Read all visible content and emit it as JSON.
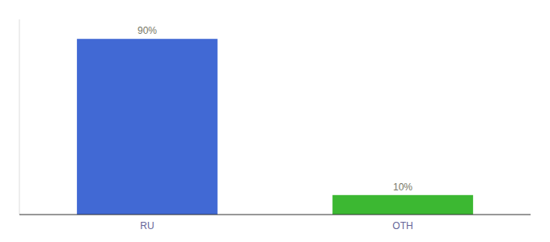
{
  "chart_data": {
    "type": "bar",
    "categories": [
      "RU",
      "OTH"
    ],
    "values": [
      90,
      10
    ],
    "value_labels": [
      "90%",
      "10%"
    ],
    "colors": [
      "#4169d4",
      "#3cb832"
    ],
    "ylim": [
      0,
      100
    ],
    "data_labels": true,
    "tick_labels": "x"
  }
}
